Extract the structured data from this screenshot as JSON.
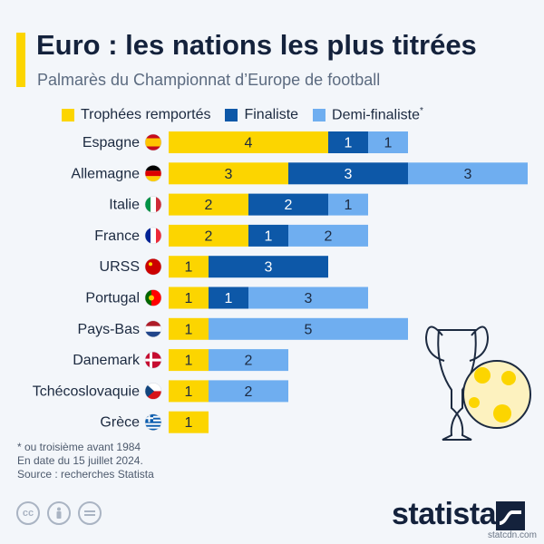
{
  "header": {
    "title": "Euro : les nations les plus titrées",
    "subtitle": "Palmarès du Championnat d’Europe de football"
  },
  "legend": {
    "items": [
      {
        "label": "Trophées remportés",
        "color": "#fcd500"
      },
      {
        "label": "Finaliste",
        "color": "#0d58a8"
      },
      {
        "label": "Demi-finaliste",
        "color": "#6faef0",
        "sup": "*"
      }
    ]
  },
  "notes": {
    "line1": "* ou troisième avant 1984",
    "line2": "En date du 15 juillet 2024.",
    "line3": "Source : recherches Statista"
  },
  "footer": {
    "brand": "statista",
    "watermark": "statcdn.com",
    "cc_icons": [
      "cc-icon",
      "attribution-icon",
      "equals-icon"
    ]
  },
  "chart_data": {
    "type": "bar",
    "orientation": "horizontal",
    "stacked": true,
    "categories": [
      "Espagne",
      "Allemagne",
      "Italie",
      "France",
      "URSS",
      "Portugal",
      "Pays-Bas",
      "Danemark",
      "Tchécoslovaquie",
      "Grèce"
    ],
    "series": [
      {
        "name": "Trophées remportés",
        "color": "#fcd500",
        "values": [
          4,
          3,
          2,
          2,
          1,
          1,
          1,
          1,
          1,
          1
        ]
      },
      {
        "name": "Finaliste",
        "color": "#0d58a8",
        "values": [
          1,
          3,
          2,
          1,
          3,
          1,
          0,
          0,
          0,
          0
        ]
      },
      {
        "name": "Demi-finaliste",
        "color": "#6faef0",
        "values": [
          1,
          3,
          1,
          2,
          0,
          3,
          5,
          2,
          2,
          0
        ]
      }
    ],
    "data_labels": true,
    "flags": [
      "spain-flag",
      "germany-flag",
      "italy-flag",
      "france-flag",
      "ussr-flag",
      "portugal-flag",
      "netherlands-flag",
      "denmark-flag",
      "czechoslovakia-flag",
      "greece-flag"
    ]
  }
}
